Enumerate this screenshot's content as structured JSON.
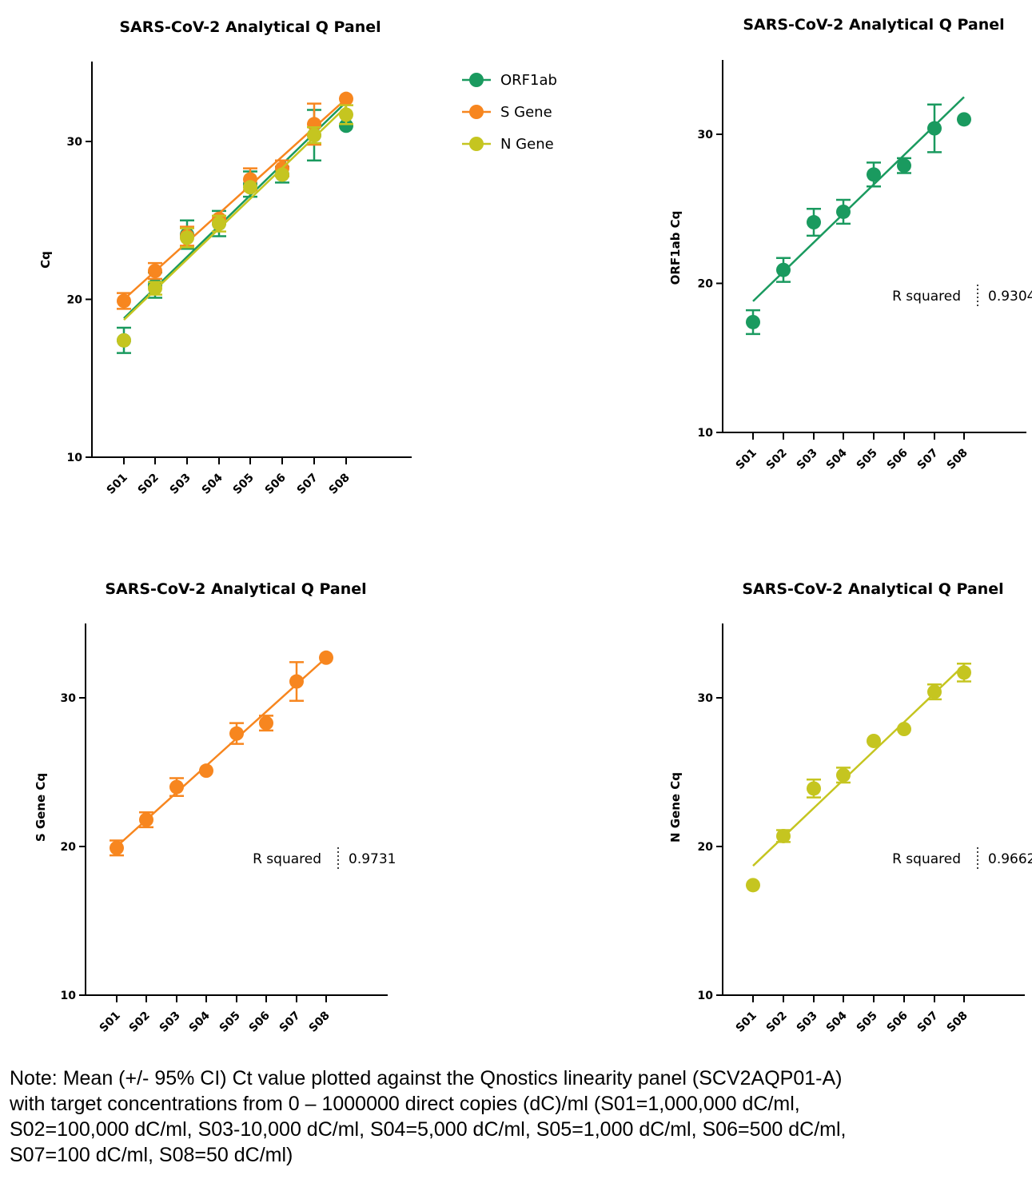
{
  "colors": {
    "orf1ab": "#1a9a5f",
    "s_gene": "#f7861f",
    "n_gene": "#c5c520",
    "axis": "#000000"
  },
  "categories": [
    "S01",
    "S02",
    "S03",
    "S04",
    "S05",
    "S06",
    "S07",
    "S08"
  ],
  "chart_data": [
    {
      "type": "scatter",
      "title": "SARS-CoV-2 Analytical Q Panel",
      "xlabel": "",
      "ylabel": "Cq",
      "ylim": [
        10,
        35
      ],
      "yticks": [
        10,
        20,
        30
      ],
      "categories": [
        "S01",
        "S02",
        "S03",
        "S04",
        "S05",
        "S06",
        "S07",
        "S08"
      ],
      "legend_position": "right",
      "series": [
        {
          "name": "ORF1ab",
          "color": "#1a9a5f",
          "values": [
            17.4,
            20.9,
            24.1,
            24.8,
            27.3,
            27.9,
            30.4,
            31.0
          ],
          "ci": [
            0.8,
            0.8,
            0.9,
            0.8,
            0.8,
            0.5,
            1.6,
            0.0
          ],
          "fit": [
            18.8,
            32.5
          ]
        },
        {
          "name": "S Gene",
          "color": "#f7861f",
          "values": [
            19.9,
            21.8,
            24.0,
            25.1,
            27.6,
            28.3,
            31.1,
            32.7
          ],
          "ci": [
            0.5,
            0.5,
            0.6,
            0.0,
            0.7,
            0.5,
            1.3,
            0.0
          ],
          "fit": [
            20.0,
            32.7
          ]
        },
        {
          "name": "N Gene",
          "color": "#c5c520",
          "values": [
            17.4,
            20.7,
            23.9,
            24.8,
            27.1,
            27.9,
            30.4,
            31.7
          ],
          "ci": [
            0.0,
            0.4,
            0.6,
            0.5,
            0.0,
            0.0,
            0.5,
            0.6
          ],
          "fit": [
            18.7,
            32.2
          ]
        }
      ]
    },
    {
      "type": "scatter",
      "title": "SARS-CoV-2 Analytical Q Panel",
      "xlabel": "",
      "ylabel": "ORF1ab Cq",
      "ylim": [
        10,
        35
      ],
      "yticks": [
        10,
        20,
        30
      ],
      "categories": [
        "S01",
        "S02",
        "S03",
        "S04",
        "S05",
        "S06",
        "S07",
        "S08"
      ],
      "r_squared_label": "R squared",
      "r_squared_value": "0.9304",
      "series": [
        {
          "name": "ORF1ab",
          "color": "#1a9a5f",
          "values": [
            17.4,
            20.9,
            24.1,
            24.8,
            27.3,
            27.9,
            30.4,
            31.0
          ],
          "ci": [
            0.8,
            0.8,
            0.9,
            0.8,
            0.8,
            0.5,
            1.6,
            0.0
          ],
          "fit": [
            18.8,
            32.5
          ]
        }
      ]
    },
    {
      "type": "scatter",
      "title": "SARS-CoV-2 Analytical Q Panel",
      "xlabel": "",
      "ylabel": "S Gene Cq",
      "ylim": [
        10,
        35
      ],
      "yticks": [
        10,
        20,
        30
      ],
      "categories": [
        "S01",
        "S02",
        "S03",
        "S04",
        "S05",
        "S06",
        "S07",
        "S08"
      ],
      "r_squared_label": "R squared",
      "r_squared_value": "0.9731",
      "series": [
        {
          "name": "S Gene",
          "color": "#f7861f",
          "values": [
            19.9,
            21.8,
            24.0,
            25.1,
            27.6,
            28.3,
            31.1,
            32.7
          ],
          "ci": [
            0.5,
            0.5,
            0.6,
            0.0,
            0.7,
            0.5,
            1.3,
            0.0
          ],
          "fit": [
            20.0,
            32.7
          ]
        }
      ]
    },
    {
      "type": "scatter",
      "title": "SARS-CoV-2 Analytical Q Panel",
      "xlabel": "",
      "ylabel": "N Gene Cq",
      "ylim": [
        10,
        35
      ],
      "yticks": [
        10,
        20,
        30
      ],
      "categories": [
        "S01",
        "S02",
        "S03",
        "S04",
        "S05",
        "S06",
        "S07",
        "S08"
      ],
      "r_squared_label": "R squared",
      "r_squared_value": "0.9662",
      "series": [
        {
          "name": "N Gene",
          "color": "#c5c520",
          "values": [
            17.4,
            20.7,
            23.9,
            24.8,
            27.1,
            27.9,
            30.4,
            31.7
          ],
          "ci": [
            0.0,
            0.4,
            0.6,
            0.5,
            0.0,
            0.0,
            0.5,
            0.6
          ],
          "fit": [
            18.7,
            32.2
          ]
        }
      ]
    }
  ],
  "note": "Note: Mean (+/- 95% CI) Ct value plotted against the Qnostics linearity panel (SCV2AQP01-A)\nwith target concentrations from 0 – 1000000 direct copies (dC)/ml (S01=1,000,000 dC/ml,\nS02=100,000 dC/ml, S03-10,000 dC/ml, S04=5,000 dC/ml, S05=1,000 dC/ml, S06=500 dC/ml,\nS07=100 dC/ml, S08=50 dC/ml)"
}
